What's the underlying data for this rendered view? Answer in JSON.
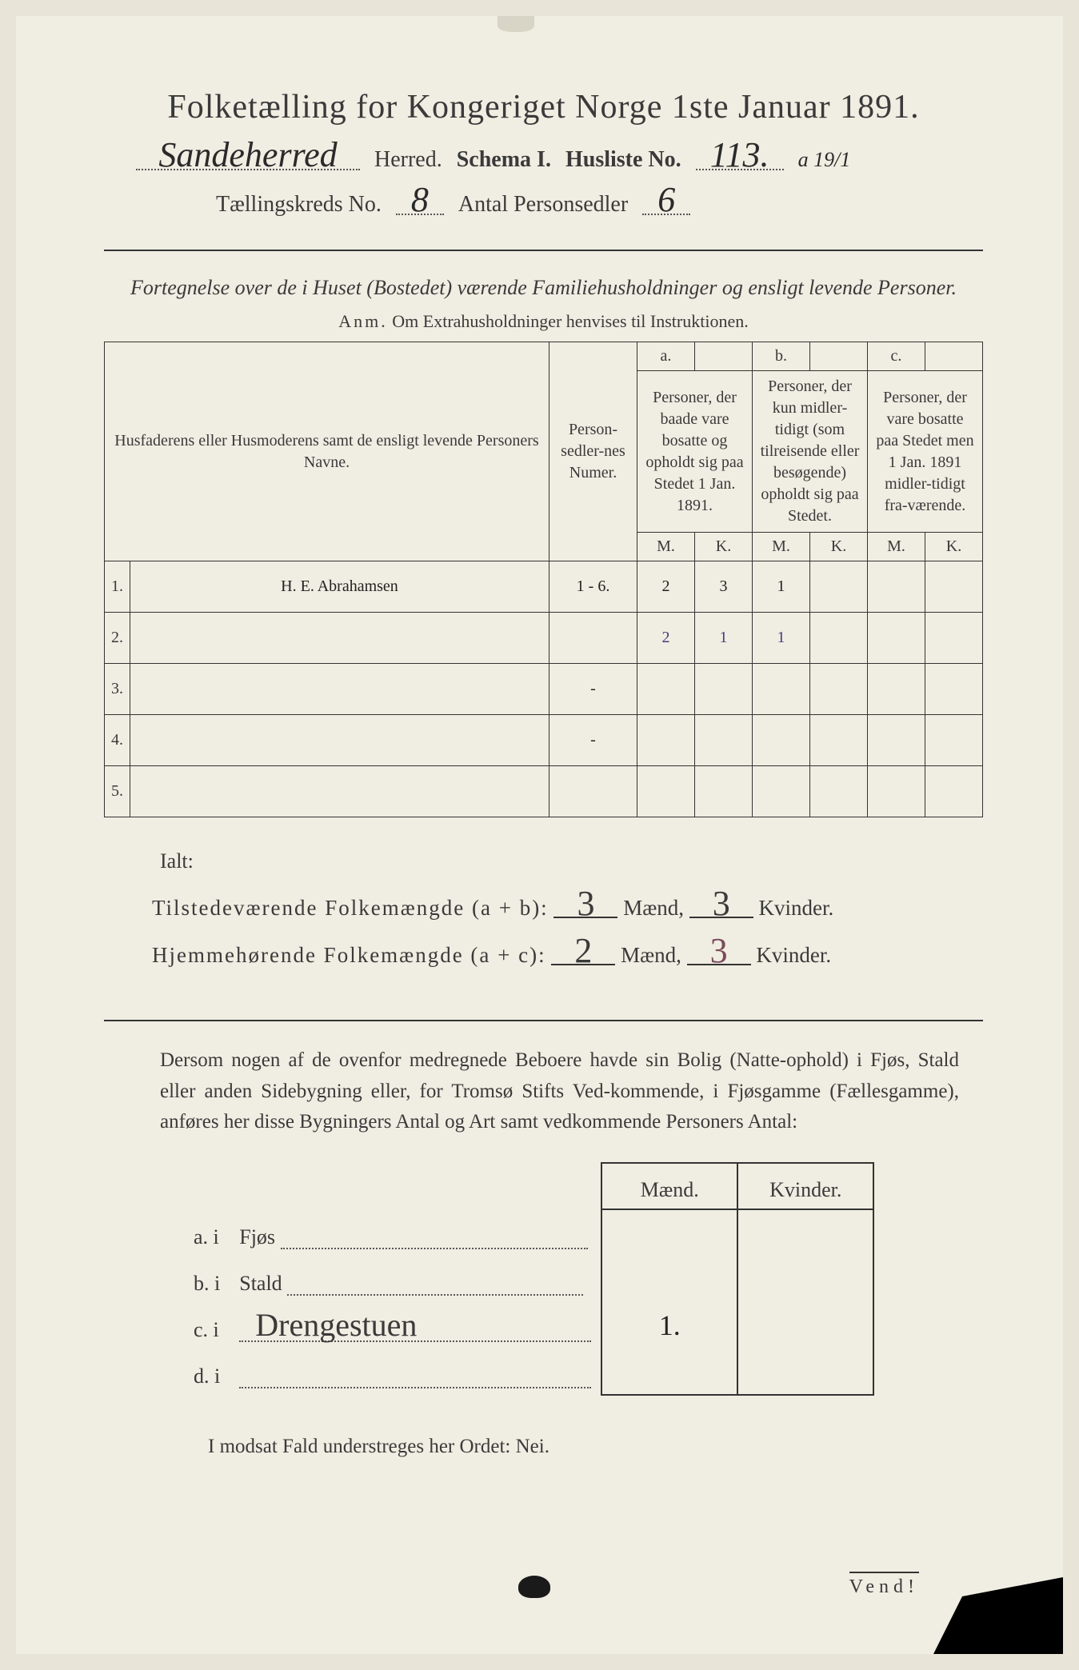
{
  "title": "Folketælling for Kongeriget Norge 1ste Januar 1891.",
  "header": {
    "herred_value": "Sandeherred",
    "herred_label": "Herred.",
    "schema_label": "Schema I.",
    "husliste_label": "Husliste No.",
    "husliste_value": "113.",
    "husliste_suffix": "a 19/1",
    "kreds_label": "Tællingskreds No.",
    "kreds_value": "8",
    "antal_label": "Antal Personsedler",
    "antal_value": "6"
  },
  "subtitle": "Fortegnelse over de i Huset (Bostedet) værende Familiehusholdninger og ensligt levende Personer.",
  "anm": {
    "prefix": "Anm.",
    "text": "Om Extrahusholdninger henvises til Instruktionen."
  },
  "table": {
    "col_name": "Husfaderens eller Husmoderens samt de ensligt levende Personers Navne.",
    "col_num": "Person-sedler-nes Numer.",
    "col_a_label": "a.",
    "col_a": "Personer, der baade vare bosatte og opholdt sig paa Stedet 1 Jan. 1891.",
    "col_b_label": "b.",
    "col_b": "Personer, der kun midler-tidigt (som tilreisende eller besøgende) opholdt sig paa Stedet.",
    "col_c_label": "c.",
    "col_c": "Personer, der vare bosatte paa Stedet men 1 Jan. 1891 midler-tidigt fra-værende.",
    "M": "M.",
    "K": "K.",
    "rows": [
      {
        "n": "1.",
        "name": "H. E. Abrahamsen",
        "num": "1 - 6.",
        "aM": "2",
        "aK": "3",
        "bM": "1",
        "bK": "",
        "cM": "",
        "cK": ""
      },
      {
        "n": "2.",
        "name": "",
        "num": "",
        "aM": "2",
        "aK": "1",
        "bM": "1",
        "bK": "",
        "cM": "",
        "cK": "",
        "purple": true
      },
      {
        "n": "3.",
        "name": "",
        "num": "-",
        "aM": "",
        "aK": "",
        "bM": "",
        "bK": "",
        "cM": "",
        "cK": ""
      },
      {
        "n": "4.",
        "name": "",
        "num": "-",
        "aM": "",
        "aK": "",
        "bM": "",
        "bK": "",
        "cM": "",
        "cK": ""
      },
      {
        "n": "5.",
        "name": "",
        "num": "",
        "aM": "",
        "aK": "",
        "bM": "",
        "bK": "",
        "cM": "",
        "cK": ""
      }
    ]
  },
  "totals": {
    "ialt": "Ialt:",
    "line1_label": "Tilstedeværende Folkemængde (a + b):",
    "line2_label": "Hjemmehørende Folkemængde (a + c):",
    "maend": "Mænd,",
    "kvinder": "Kvinder.",
    "v1m": "3",
    "v1k": "3",
    "v2m": "2",
    "v2k": "3"
  },
  "paragraph": "Dersom nogen af de ovenfor medregnede Beboere havde sin Bolig (Natte-ophold) i Fjøs, Stald eller anden Sidebygning eller, for Tromsø Stifts Ved-kommende, i Fjøsgamme (Fællesgamme), anføres her disse Bygningers Antal og Art samt vedkommende Personers Antal:",
  "lower": {
    "maend": "Mænd.",
    "kvinder": "Kvinder.",
    "rows": [
      {
        "label": "a.  i",
        "place": "Fjøs",
        "m": "",
        "k": ""
      },
      {
        "label": "b.  i",
        "place": "Stald",
        "m": "",
        "k": ""
      },
      {
        "label": "c.  i",
        "place_hw": "Drengestuen",
        "m": "1.",
        "k": ""
      },
      {
        "label": "d.  i",
        "place": "",
        "m": "",
        "k": ""
      }
    ]
  },
  "footer": "I modsat Fald understreges her Ordet: Nei.",
  "vend": "Vend!"
}
